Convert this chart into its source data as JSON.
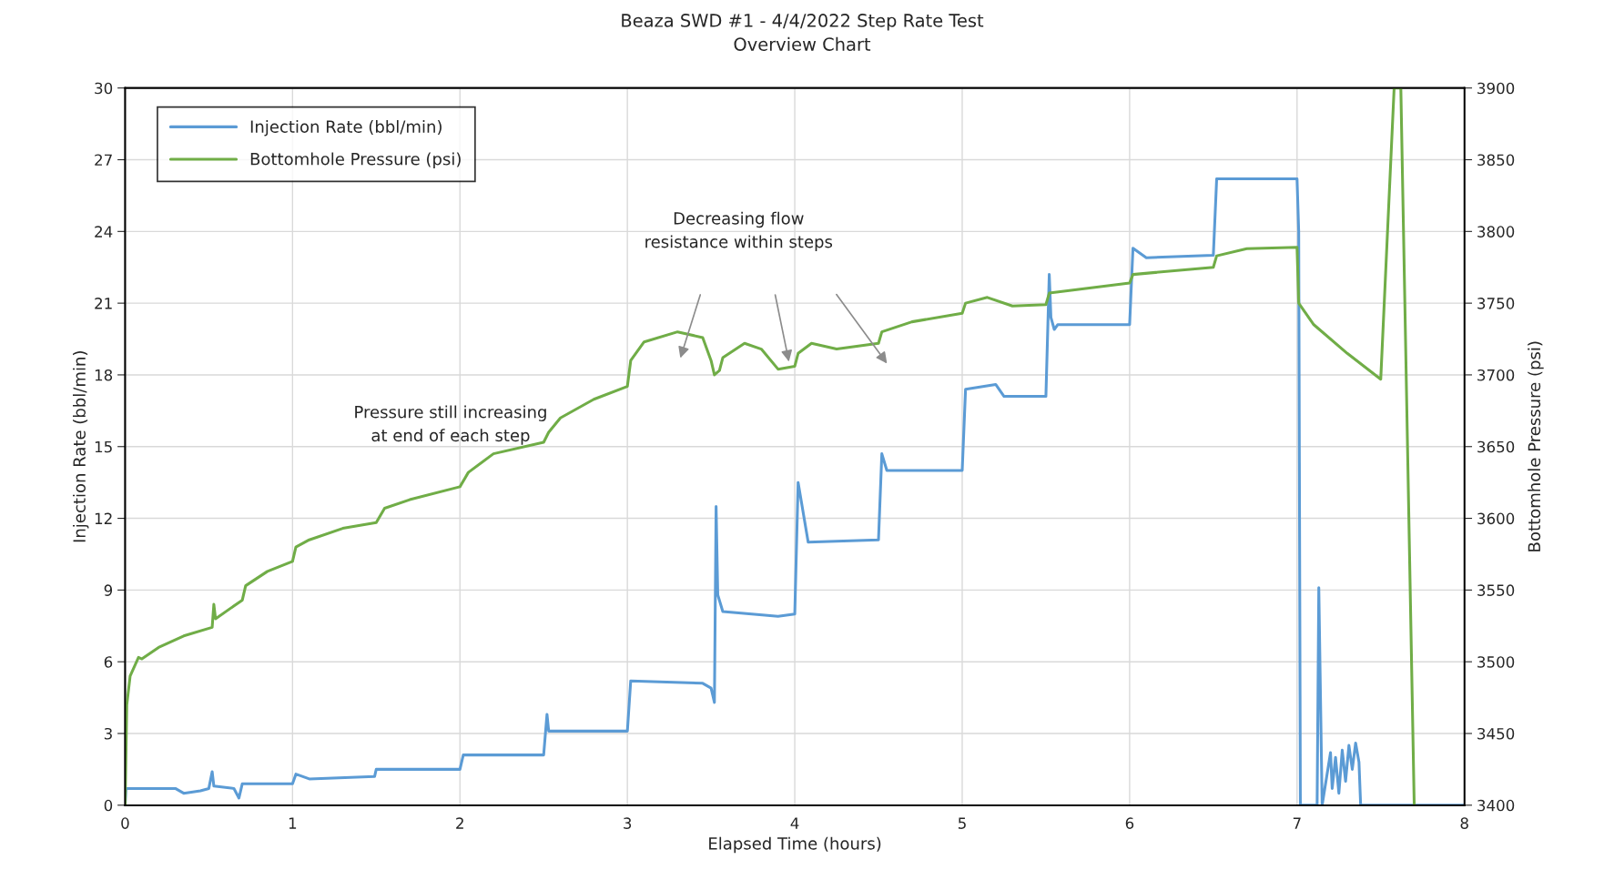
{
  "chart_data": {
    "type": "line",
    "title": "Beaza SWD #1 - 4/4/2022 Step Rate Test",
    "subtitle": "Overview Chart",
    "xlabel": "Elapsed Time (hours)",
    "ylabel": "Injection Rate (bbl/min)",
    "y2label": "Bottomhole Pressure (psi)",
    "xlim": [
      0,
      8
    ],
    "xticks": [
      0,
      1,
      2,
      3,
      4,
      5,
      6,
      7,
      8
    ],
    "ylim": [
      0,
      30
    ],
    "yticks": [
      0,
      3,
      6,
      9,
      12,
      15,
      18,
      21,
      24,
      27,
      30
    ],
    "y2lim": [
      3400,
      3900
    ],
    "y2ticks": [
      3400,
      3450,
      3500,
      3550,
      3600,
      3650,
      3700,
      3750,
      3800,
      3850,
      3900
    ],
    "grid": true,
    "legend": "top left",
    "line_style": "solid",
    "annotations": [
      "Decreasing flow\nresistance within steps",
      "Pressure still increasing\nat end of each step"
    ],
    "series": [
      {
        "name": "Injection Rate (bbl/min)",
        "color": "#5b9bd5",
        "x": [
          0,
          0.005,
          0.3,
          0.35,
          0.45,
          0.5,
          0.52,
          0.53,
          0.65,
          0.68,
          0.7,
          1.0,
          1.02,
          1.1,
          1.49,
          1.5,
          2.0,
          2.02,
          2.5,
          2.52,
          2.53,
          3.0,
          3.02,
          3.45,
          3.5,
          3.52,
          3.53,
          3.54,
          3.57,
          3.9,
          4.0,
          4.02,
          4.08,
          4.5,
          4.52,
          4.55,
          5.0,
          5.02,
          5.2,
          5.25,
          5.5,
          5.52,
          5.53,
          5.55,
          5.57,
          6.0,
          6.02,
          6.1,
          6.5,
          6.52,
          7.0,
          7.01,
          7.02,
          7.12,
          7.13,
          7.15,
          7.2,
          7.21,
          7.23,
          7.25,
          7.27,
          7.29,
          7.31,
          7.33,
          7.35,
          7.37,
          7.38,
          8.0
        ],
        "values": [
          0,
          0.7,
          0.7,
          0.5,
          0.6,
          0.7,
          1.4,
          0.8,
          0.7,
          0.3,
          0.9,
          0.9,
          1.3,
          1.1,
          1.2,
          1.5,
          1.5,
          2.1,
          2.1,
          3.8,
          3.1,
          3.1,
          5.2,
          5.1,
          4.9,
          4.3,
          12.5,
          8.8,
          8.1,
          7.9,
          8.0,
          13.5,
          11.0,
          11.1,
          14.7,
          14.0,
          14.0,
          17.4,
          17.6,
          17.1,
          17.1,
          22.2,
          20.4,
          19.9,
          20.1,
          20.1,
          23.3,
          22.9,
          23.0,
          26.2,
          26.2,
          24.0,
          0,
          0,
          9.1,
          0,
          2.2,
          0.7,
          2.0,
          0.5,
          2.3,
          1.0,
          2.5,
          1.5,
          2.6,
          1.8,
          0,
          0
        ]
      },
      {
        "name": "Bottomhole Pressure (psi)",
        "color": "#70ad47",
        "axis": "y2",
        "x": [
          0,
          0.01,
          0.03,
          0.08,
          0.1,
          0.2,
          0.35,
          0.52,
          0.53,
          0.54,
          0.7,
          0.72,
          0.85,
          1.0,
          1.02,
          1.1,
          1.3,
          1.5,
          1.55,
          1.7,
          2.0,
          2.05,
          2.2,
          2.5,
          2.53,
          2.6,
          2.8,
          3.0,
          3.02,
          3.1,
          3.3,
          3.45,
          3.5,
          3.52,
          3.55,
          3.57,
          3.7,
          3.8,
          3.9,
          4.0,
          4.02,
          4.1,
          4.25,
          4.5,
          4.52,
          4.7,
          5.0,
          5.02,
          5.15,
          5.3,
          5.5,
          5.52,
          6.0,
          6.02,
          6.5,
          6.52,
          6.7,
          7.0,
          7.01,
          7.1,
          7.3,
          7.5,
          7.58,
          7.62,
          7.7
        ],
        "values": [
          3400,
          3470,
          3490,
          3503,
          3502,
          3510,
          3518,
          3524,
          3540,
          3530,
          3543,
          3553,
          3563,
          3570,
          3580,
          3585,
          3593,
          3597,
          3607,
          3613,
          3622,
          3632,
          3645,
          3653,
          3660,
          3670,
          3683,
          3692,
          3710,
          3723,
          3730,
          3726,
          3710,
          3700,
          3703,
          3712,
          3722,
          3718,
          3704,
          3706,
          3715,
          3722,
          3718,
          3722,
          3730,
          3737,
          3743,
          3750,
          3754,
          3748,
          3749,
          3757,
          3764,
          3770,
          3775,
          3783,
          3788,
          3789,
          3750,
          3735,
          3715,
          3697,
          3900,
          3900,
          3400
        ]
      }
    ]
  }
}
